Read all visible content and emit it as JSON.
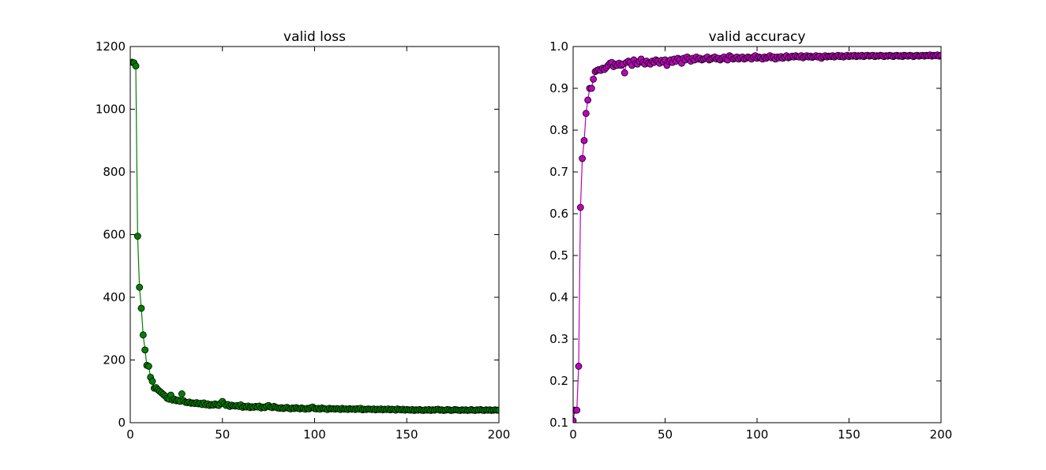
{
  "chart_data": [
    {
      "type": "line",
      "title": "valid loss",
      "color": "#008000",
      "marker": "o",
      "x": [
        1,
        2,
        3,
        4,
        5,
        6,
        7,
        8,
        9,
        10,
        11,
        12,
        13,
        14,
        15,
        16,
        17,
        18,
        19,
        20,
        21,
        22,
        23,
        24,
        25,
        26,
        27,
        28,
        29,
        30,
        31,
        32,
        33,
        34,
        35,
        36,
        37,
        38,
        39,
        40,
        41,
        42,
        43,
        44,
        45,
        46,
        47,
        48,
        49,
        50,
        51,
        52,
        53,
        54,
        55,
        56,
        57,
        58,
        59,
        60,
        61,
        62,
        63,
        64,
        65,
        66,
        67,
        68,
        69,
        70,
        71,
        72,
        73,
        74,
        75,
        76,
        77,
        78,
        79,
        80,
        81,
        82,
        83,
        84,
        85,
        86,
        87,
        88,
        89,
        90,
        91,
        92,
        93,
        94,
        95,
        96,
        97,
        98,
        99,
        100,
        101,
        102,
        103,
        104,
        105,
        106,
        107,
        108,
        109,
        110,
        111,
        112,
        113,
        114,
        115,
        116,
        117,
        118,
        119,
        120,
        121,
        122,
        123,
        124,
        125,
        126,
        127,
        128,
        129,
        130,
        131,
        132,
        133,
        134,
        135,
        136,
        137,
        138,
        139,
        140,
        141,
        142,
        143,
        144,
        145,
        146,
        147,
        148,
        149,
        150,
        151,
        152,
        153,
        154,
        155,
        156,
        157,
        158,
        159,
        160,
        161,
        162,
        163,
        164,
        165,
        166,
        167,
        168,
        169,
        170,
        171,
        172,
        173,
        174,
        175,
        176,
        177,
        178,
        179,
        180,
        181,
        182,
        183,
        184,
        185,
        186,
        187,
        188,
        189,
        190,
        191,
        192,
        193,
        194,
        195,
        196,
        197,
        198,
        199,
        200
      ],
      "values": [
        1150,
        1148,
        1138,
        595,
        432,
        365,
        280,
        232,
        183,
        180,
        145,
        132,
        110,
        112,
        105,
        100,
        95,
        90,
        85,
        78,
        75,
        88,
        72,
        75,
        70,
        72,
        68,
        92,
        70,
        65,
        64,
        66,
        62,
        63,
        61,
        64,
        60,
        62,
        58,
        63,
        57,
        60,
        55,
        58,
        56,
        60,
        57,
        55,
        62,
        68,
        60,
        55,
        58,
        52,
        56,
        54,
        53,
        55,
        52,
        57,
        49,
        52,
        50,
        53,
        48,
        51,
        49,
        52,
        50,
        53,
        47,
        50,
        48,
        52,
        55,
        50,
        48,
        52,
        49,
        47,
        46,
        48,
        45,
        47,
        49,
        46,
        44,
        47,
        45,
        48,
        46,
        44,
        47,
        45,
        43,
        46,
        44,
        48,
        50,
        45,
        44,
        46,
        43,
        47,
        45,
        44,
        42,
        46,
        44,
        45,
        43,
        45,
        44,
        42,
        46,
        43,
        44,
        42,
        45,
        43,
        44,
        42,
        45,
        43,
        46,
        41,
        43,
        42,
        44,
        43,
        42,
        44,
        41,
        43,
        42,
        44,
        41,
        43,
        42,
        44,
        41,
        43,
        42,
        40,
        44,
        42,
        41,
        43,
        40,
        42,
        41,
        40,
        42,
        39,
        41,
        40,
        42,
        40,
        39,
        41,
        40,
        42,
        39,
        41,
        40,
        42,
        43,
        40,
        41,
        39,
        40,
        42,
        41,
        39,
        40,
        42,
        41,
        40,
        39,
        41,
        40,
        41,
        39,
        40,
        42,
        40,
        39,
        41,
        40,
        42,
        40,
        39,
        41,
        40,
        41,
        39,
        40,
        41,
        40,
        40
      ],
      "xlim": [
        0,
        200
      ],
      "xticks": [
        0,
        50,
        100,
        150,
        200
      ],
      "ylim": [
        0,
        1200
      ],
      "yticks": [
        0,
        200,
        400,
        600,
        800,
        1000,
        1200
      ]
    },
    {
      "type": "line",
      "title": "valid accuracy",
      "color": "#bf00bf",
      "marker": "o",
      "x": [
        0,
        1,
        2,
        3,
        4,
        5,
        6,
        7,
        8,
        9,
        10,
        11,
        12,
        13,
        14,
        15,
        16,
        17,
        18,
        19,
        20,
        21,
        22,
        23,
        24,
        25,
        26,
        27,
        28,
        29,
        30,
        31,
        32,
        33,
        34,
        35,
        36,
        37,
        38,
        39,
        40,
        41,
        42,
        43,
        44,
        45,
        46,
        47,
        48,
        49,
        50,
        51,
        52,
        53,
        54,
        55,
        56,
        57,
        58,
        59,
        60,
        61,
        62,
        63,
        64,
        65,
        66,
        67,
        68,
        69,
        70,
        71,
        72,
        73,
        74,
        75,
        76,
        77,
        78,
        79,
        80,
        81,
        82,
        83,
        84,
        85,
        86,
        87,
        88,
        89,
        90,
        91,
        92,
        93,
        94,
        95,
        96,
        97,
        98,
        99,
        100,
        101,
        102,
        103,
        104,
        105,
        106,
        107,
        108,
        109,
        110,
        111,
        112,
        113,
        114,
        115,
        116,
        117,
        118,
        119,
        120,
        121,
        122,
        123,
        124,
        125,
        126,
        127,
        128,
        129,
        130,
        131,
        132,
        133,
        134,
        135,
        136,
        137,
        138,
        139,
        140,
        141,
        142,
        143,
        144,
        145,
        146,
        147,
        148,
        149,
        150,
        151,
        152,
        153,
        154,
        155,
        156,
        157,
        158,
        159,
        160,
        161,
        162,
        163,
        164,
        165,
        166,
        167,
        168,
        169,
        170,
        171,
        172,
        173,
        174,
        175,
        176,
        177,
        178,
        179,
        180,
        181,
        182,
        183,
        184,
        185,
        186,
        187,
        188,
        189,
        190,
        191,
        192,
        193,
        194,
        195,
        196,
        197,
        198,
        199,
        200
      ],
      "values": [
        0.105,
        0.13,
        0.13,
        0.235,
        0.615,
        0.732,
        0.775,
        0.84,
        0.872,
        0.9,
        0.9,
        0.922,
        0.94,
        0.943,
        0.945,
        0.943,
        0.948,
        0.945,
        0.95,
        0.955,
        0.96,
        0.962,
        0.952,
        0.958,
        0.955,
        0.96,
        0.955,
        0.958,
        0.937,
        0.962,
        0.965,
        0.962,
        0.955,
        0.968,
        0.96,
        0.958,
        0.965,
        0.97,
        0.962,
        0.958,
        0.965,
        0.96,
        0.958,
        0.965,
        0.962,
        0.968,
        0.965,
        0.96,
        0.967,
        0.963,
        0.968,
        0.955,
        0.965,
        0.968,
        0.962,
        0.97,
        0.965,
        0.972,
        0.968,
        0.96,
        0.972,
        0.968,
        0.975,
        0.97,
        0.965,
        0.972,
        0.968,
        0.975,
        0.97,
        0.972,
        0.968,
        0.97,
        0.972,
        0.975,
        0.968,
        0.97,
        0.973,
        0.975,
        0.97,
        0.972,
        0.968,
        0.972,
        0.975,
        0.97,
        0.968,
        0.978,
        0.975,
        0.97,
        0.972,
        0.975,
        0.97,
        0.973,
        0.975,
        0.97,
        0.972,
        0.975,
        0.973,
        0.97,
        0.975,
        0.978,
        0.972,
        0.975,
        0.973,
        0.97,
        0.975,
        0.972,
        0.975,
        0.978,
        0.973,
        0.975,
        0.97,
        0.975,
        0.973,
        0.976,
        0.972,
        0.975,
        0.978,
        0.973,
        0.975,
        0.977,
        0.975,
        0.978,
        0.976,
        0.975,
        0.978,
        0.973,
        0.976,
        0.978,
        0.975,
        0.977,
        0.974,
        0.976,
        0.978,
        0.975,
        0.977,
        0.972,
        0.976,
        0.978,
        0.975,
        0.977,
        0.976,
        0.978,
        0.975,
        0.977,
        0.979,
        0.976,
        0.978,
        0.975,
        0.977,
        0.979,
        0.976,
        0.978,
        0.977,
        0.979,
        0.976,
        0.978,
        0.977,
        0.979,
        0.976,
        0.978,
        0.979,
        0.977,
        0.978,
        0.979,
        0.976,
        0.978,
        0.977,
        0.979,
        0.978,
        0.976,
        0.978,
        0.977,
        0.979,
        0.978,
        0.976,
        0.978,
        0.979,
        0.977,
        0.978,
        0.976,
        0.979,
        0.978,
        0.977,
        0.979,
        0.978,
        0.976,
        0.978,
        0.979,
        0.977,
        0.978,
        0.979,
        0.977,
        0.979,
        0.978,
        0.98,
        0.977,
        0.979,
        0.978,
        0.98,
        0.977,
        0.979
      ],
      "xlim": [
        0,
        200
      ],
      "xticks": [
        0,
        50,
        100,
        150,
        200
      ],
      "ylim": [
        0.1,
        1
      ],
      "yticks": [
        0.1,
        0.2,
        0.3,
        0.4,
        0.5,
        0.6,
        0.7,
        0.8,
        0.9,
        {
          "value": 1,
          "label": "1.0"
        }
      ]
    }
  ]
}
